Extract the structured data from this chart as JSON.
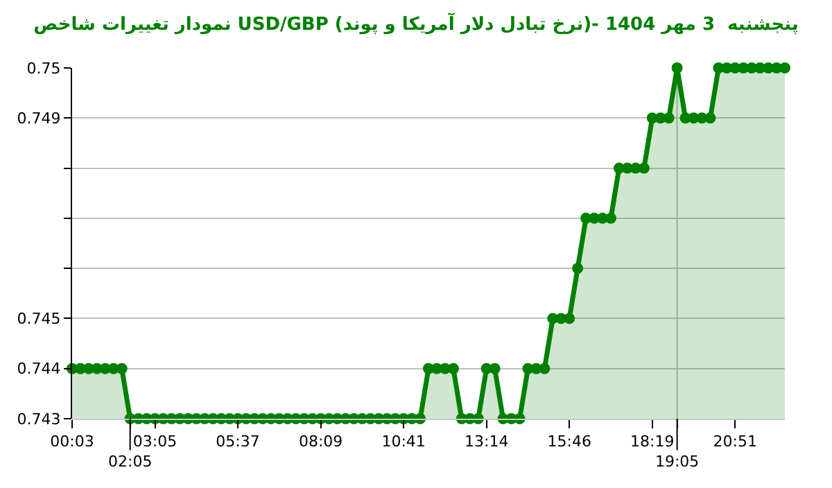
{
  "chart_data": {
    "type": "area",
    "title": "نمودار تغییرات شاخص USD/GBP (نرخ تبادل دلار آمریکا و پوند)- پنجشنبه  3 مهر 1404",
    "categories": [
      "00:03",
      null,
      null,
      null,
      null,
      null,
      null,
      "02:05",
      null,
      null,
      "03:05",
      null,
      null,
      null,
      null,
      null,
      null,
      null,
      null,
      null,
      "05:37",
      null,
      null,
      null,
      null,
      null,
      null,
      null,
      null,
      null,
      "08:09",
      null,
      null,
      null,
      null,
      null,
      null,
      null,
      null,
      null,
      "10:41",
      null,
      null,
      null,
      null,
      null,
      null,
      null,
      null,
      null,
      "13:14",
      null,
      null,
      null,
      null,
      null,
      null,
      null,
      null,
      null,
      "15:46",
      null,
      null,
      null,
      null,
      null,
      null,
      null,
      null,
      null,
      "18:19",
      null,
      null,
      "19:05",
      null,
      null,
      null,
      null,
      null,
      null,
      "20:51",
      null,
      null,
      null,
      null,
      null,
      null
    ],
    "series": [
      {
        "color": "#008000",
        "values": [
          0.744,
          0.744,
          0.744,
          0.744,
          0.744,
          0.744,
          0.744,
          0.743,
          0.743,
          0.743,
          0.743,
          0.743,
          0.743,
          0.743,
          0.743,
          0.743,
          0.743,
          0.743,
          0.743,
          0.743,
          0.743,
          0.743,
          0.743,
          0.743,
          0.743,
          0.743,
          0.743,
          0.743,
          0.743,
          0.743,
          0.743,
          0.743,
          0.743,
          0.743,
          0.743,
          0.743,
          0.743,
          0.743,
          0.743,
          0.743,
          0.743,
          0.743,
          0.743,
          0.744,
          0.744,
          0.744,
          0.744,
          0.743,
          0.743,
          0.743,
          0.744,
          0.744,
          0.743,
          0.743,
          0.743,
          0.744,
          0.744,
          0.744,
          0.745,
          0.745,
          0.745,
          0.746,
          0.747,
          0.747,
          0.747,
          0.747,
          0.748,
          0.748,
          0.748,
          0.748,
          0.749,
          0.749,
          0.749,
          0.75,
          0.749,
          0.749,
          0.749,
          0.749,
          0.75,
          0.75,
          0.75,
          0.75,
          0.75,
          0.75,
          0.75,
          0.75,
          0.75
        ]
      }
    ],
    "ylim": [
      0.743,
      0.75
    ],
    "yticks": [
      0.743,
      0.744,
      0.745,
      {
        "value": 0.746,
        "label": null
      },
      {
        "value": 0.747,
        "label": null
      },
      {
        "value": 0.748,
        "label": null
      },
      0.749,
      0.75
    ],
    "ref_lines": [
      {
        "axis": "x",
        "value": "19:05",
        "color": "#b0c4b0"
      }
    ],
    "grid": "y",
    "marker": "circle",
    "line_style": "solid",
    "legend": false
  }
}
